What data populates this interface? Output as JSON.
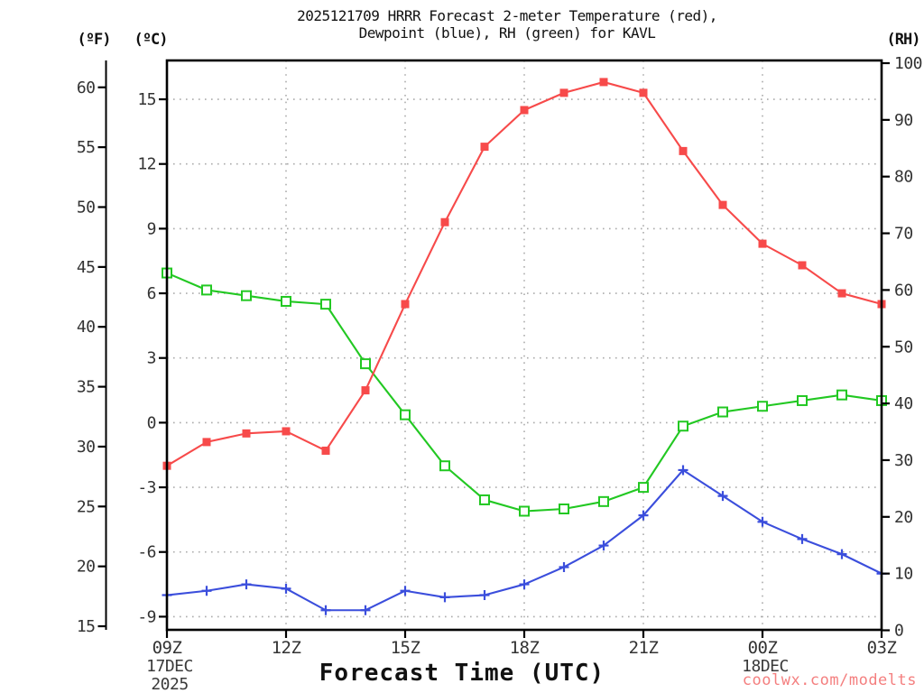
{
  "title": {
    "line1": "2025121709 HRRR Forecast 2-meter Temperature (red),",
    "line2": "Dewpoint (blue), RH (green) for KAVL",
    "model_run": "2025121709",
    "model": "HRRR",
    "station": "KAVL"
  },
  "axes": {
    "left_f": {
      "header": "(ºF)",
      "ticks": [
        60,
        55,
        50,
        45,
        40,
        35,
        30,
        25,
        20,
        15
      ]
    },
    "left_c": {
      "header": "(ºC)",
      "ticks": [
        15,
        12,
        9,
        6,
        3,
        0,
        -3,
        -6,
        -9
      ]
    },
    "right_rh": {
      "header": "(RH)",
      "ticks": [
        100,
        90,
        80,
        70,
        60,
        50,
        40,
        30,
        20,
        10,
        0
      ]
    },
    "x": {
      "label": "Forecast Time (UTC)",
      "ticks": [
        {
          "label": "09Z",
          "index": 0,
          "grid": false
        },
        {
          "label": "12Z",
          "index": 3,
          "grid": true
        },
        {
          "label": "15Z",
          "index": 6,
          "grid": true
        },
        {
          "label": "18Z",
          "index": 9,
          "grid": true
        },
        {
          "label": "21Z",
          "index": 12,
          "grid": true
        },
        {
          "label": "00Z",
          "index": 15,
          "grid": true
        },
        {
          "label": "03Z",
          "index": 18,
          "grid": false
        }
      ],
      "date_annotations": [
        {
          "text": "17DEC",
          "index": 0,
          "row": 1
        },
        {
          "text": "2025",
          "index": 0,
          "row": 2
        },
        {
          "text": "18DEC",
          "index": 15,
          "row": 1
        }
      ]
    }
  },
  "watermark": "coolwx.com/modelts",
  "colors": {
    "temperature": "#f74a4a",
    "dewpoint": "#3b4edc",
    "rh": "#22c822",
    "grid": "#ababab",
    "frame": "#000000",
    "watermark": "#f47f7f"
  },
  "chart_data": {
    "type": "line",
    "title": "2025121709 HRRR Forecast 2-meter Temperature (red), Dewpoint (blue), RH (green) for KAVL",
    "xlabel": "Forecast Time (UTC)",
    "x": [
      "09Z",
      "10Z",
      "11Z",
      "12Z",
      "13Z",
      "14Z",
      "15Z",
      "16Z",
      "17Z",
      "18Z",
      "19Z",
      "20Z",
      "21Z",
      "22Z",
      "23Z",
      "00Z",
      "01Z",
      "02Z",
      "03Z"
    ],
    "x_dates": {
      "09Z": "17DEC 2025",
      "00Z": "18DEC"
    },
    "ylim_celsius": [
      -9.7,
      16.8
    ],
    "ylim_fahrenheit": [
      14.5,
      62.2
    ],
    "ylim_rh": [
      0,
      100
    ],
    "grid": "dotted at labeled ticks",
    "legend_position": "in title text",
    "series": [
      {
        "name": "2-meter Temperature",
        "unit": "degC",
        "axis": "celsius",
        "color": "#f74a4a",
        "marker": "filled-square",
        "values": [
          -2.0,
          -0.9,
          -0.5,
          -0.4,
          -1.3,
          1.5,
          5.5,
          9.3,
          12.8,
          14.5,
          15.3,
          15.8,
          15.3,
          12.6,
          10.1,
          8.3,
          7.3,
          6.0,
          5.5
        ]
      },
      {
        "name": "Dewpoint",
        "unit": "degC",
        "axis": "celsius",
        "color": "#3b4edc",
        "marker": "plus",
        "values": [
          -8.0,
          -7.8,
          -7.5,
          -7.7,
          -8.7,
          -8.7,
          -7.8,
          -8.1,
          -8.0,
          -7.5,
          -6.7,
          -5.7,
          -4.3,
          -2.2,
          -3.4,
          -4.6,
          -5.4,
          -6.1,
          -7.0
        ]
      },
      {
        "name": "RH",
        "unit": "%",
        "axis": "rh",
        "color": "#22c822",
        "marker": "open-square",
        "values": [
          63,
          60,
          59,
          58,
          57.5,
          47,
          38,
          29,
          23,
          21,
          21.4,
          22.7,
          25.2,
          36,
          38.5,
          39.5,
          40.5,
          41.5,
          40.5
        ]
      }
    ]
  }
}
